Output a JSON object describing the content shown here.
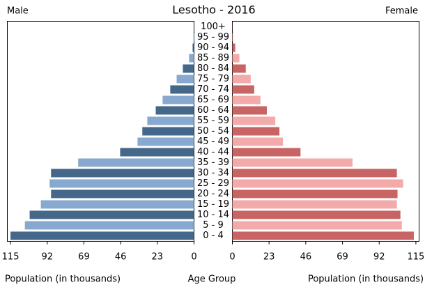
{
  "chart_data": {
    "type": "pyramid",
    "title": "Lesotho - 2016",
    "xlabel": "Population (in thousands)",
    "category_label": "Age Group",
    "categories": [
      "0 - 4",
      "5 - 9",
      "10 - 14",
      "15 - 19",
      "20 - 24",
      "25 - 29",
      "30 - 34",
      "35 - 39",
      "40 - 44",
      "45 - 49",
      "50 - 54",
      "55 - 59",
      "60 - 64",
      "65 - 69",
      "70 - 74",
      "75 - 79",
      "80 - 84",
      "85 - 89",
      "90 - 94",
      "95 - 99",
      "100+"
    ],
    "series": [
      {
        "name": "Male",
        "colors": [
          "#44678a",
          "#87a9cf"
        ],
        "values": [
          115,
          106,
          103,
          96,
          89.6,
          90.5,
          89.6,
          72.6,
          46.3,
          35.4,
          32.4,
          29.3,
          24,
          19.7,
          14.9,
          10.9,
          7,
          3.1,
          0.9,
          0.3,
          0.1
        ]
      },
      {
        "name": "Female",
        "colors": [
          "#c86464",
          "#f3aaaa"
        ],
        "values": [
          113.7,
          106.2,
          105.3,
          103.1,
          103.5,
          107,
          103.1,
          75.3,
          42.7,
          31.7,
          29.5,
          26.9,
          21.6,
          17.6,
          13.7,
          11.5,
          8.4,
          4.4,
          1.8,
          0.4,
          0.1
        ]
      }
    ],
    "xlim": [
      0,
      117
    ],
    "xticks": [
      0,
      23,
      46,
      69,
      92,
      115
    ]
  }
}
